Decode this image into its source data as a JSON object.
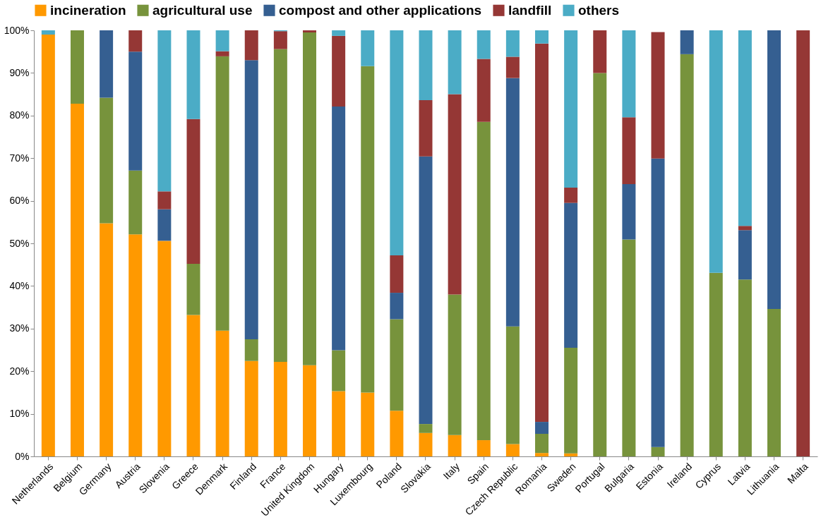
{
  "chart_data": {
    "type": "bar",
    "stacked": true,
    "legend": "top",
    "grid": false,
    "categories": [
      "Netherlands",
      "Belgium",
      "Germany",
      "Austria",
      "Slovenia",
      "Greece",
      "Denmark",
      "Finland",
      "France",
      "United Kingdom",
      "Hungary",
      "Luxembourg",
      "Poland",
      "Slovakia",
      "Italy",
      "Spain",
      "Czech Republic",
      "Romania",
      "Sweden",
      "Portugal",
      "Bulgaria",
      "Estonia",
      "Ireland",
      "Cyprus",
      "Latvia",
      "Lithuania",
      "Malta"
    ],
    "series": [
      {
        "name": "incineration",
        "color": "#ff9900",
        "values": [
          99,
          82.8,
          54.7,
          52.1,
          50.6,
          33.2,
          29.5,
          22.4,
          22.2,
          21.4,
          15.3,
          15,
          10.7,
          5.5,
          5,
          3.8,
          2.9,
          0.8,
          0.7,
          0,
          0,
          0,
          0,
          0,
          0,
          0,
          0
        ]
      },
      {
        "name": "agricultural use",
        "color": "#77933c",
        "values": [
          0,
          17.2,
          29.5,
          15,
          0,
          12,
          64.4,
          5.1,
          73.4,
          78.1,
          9.6,
          76.6,
          21.5,
          2.1,
          33,
          74.7,
          27.6,
          4.5,
          24.8,
          90,
          50.9,
          2.2,
          94.4,
          43.1,
          41.5,
          34.6,
          0
        ]
      },
      {
        "name": "compost and other applications",
        "color": "#355f91",
        "values": [
          0,
          0,
          15.8,
          27.9,
          7.4,
          0,
          0,
          65.5,
          0,
          0,
          57.2,
          0,
          6.2,
          62.8,
          0,
          0,
          58.3,
          2.8,
          34,
          0,
          13,
          67.7,
          5.6,
          0,
          11.6,
          65.4,
          0
        ]
      },
      {
        "name": "landfill",
        "color": "#953735",
        "values": [
          0,
          0,
          0,
          5,
          4.2,
          34,
          1.2,
          7,
          4.2,
          0.5,
          16.6,
          0,
          8.8,
          13.2,
          47,
          14.8,
          5,
          88.8,
          3.6,
          10,
          15.7,
          29.7,
          0,
          0,
          1,
          0,
          100
        ]
      },
      {
        "name": "others",
        "color": "#4bacc6",
        "values": [
          1,
          0,
          0,
          0,
          37.8,
          20.8,
          4.9,
          0,
          0.2,
          0,
          1.3,
          8.4,
          52.8,
          16.4,
          15,
          6.7,
          6.2,
          3.1,
          36.9,
          0,
          20.4,
          0,
          0,
          56.9,
          45.9,
          0,
          0
        ]
      }
    ],
    "ylim": [
      0,
      100
    ],
    "yticks": [
      {
        "value": 0,
        "label": "0%"
      },
      {
        "value": 10,
        "label": "10%"
      },
      {
        "value": 20,
        "label": "20%"
      },
      {
        "value": 30,
        "label": "30%"
      },
      {
        "value": 40,
        "label": "40%"
      },
      {
        "value": 50,
        "label": "50%"
      },
      {
        "value": 60,
        "label": "60%"
      },
      {
        "value": 70,
        "label": "70%"
      },
      {
        "value": 80,
        "label": "80%"
      },
      {
        "value": 90,
        "label": "90%"
      },
      {
        "value": 100,
        "label": "100%"
      }
    ]
  }
}
